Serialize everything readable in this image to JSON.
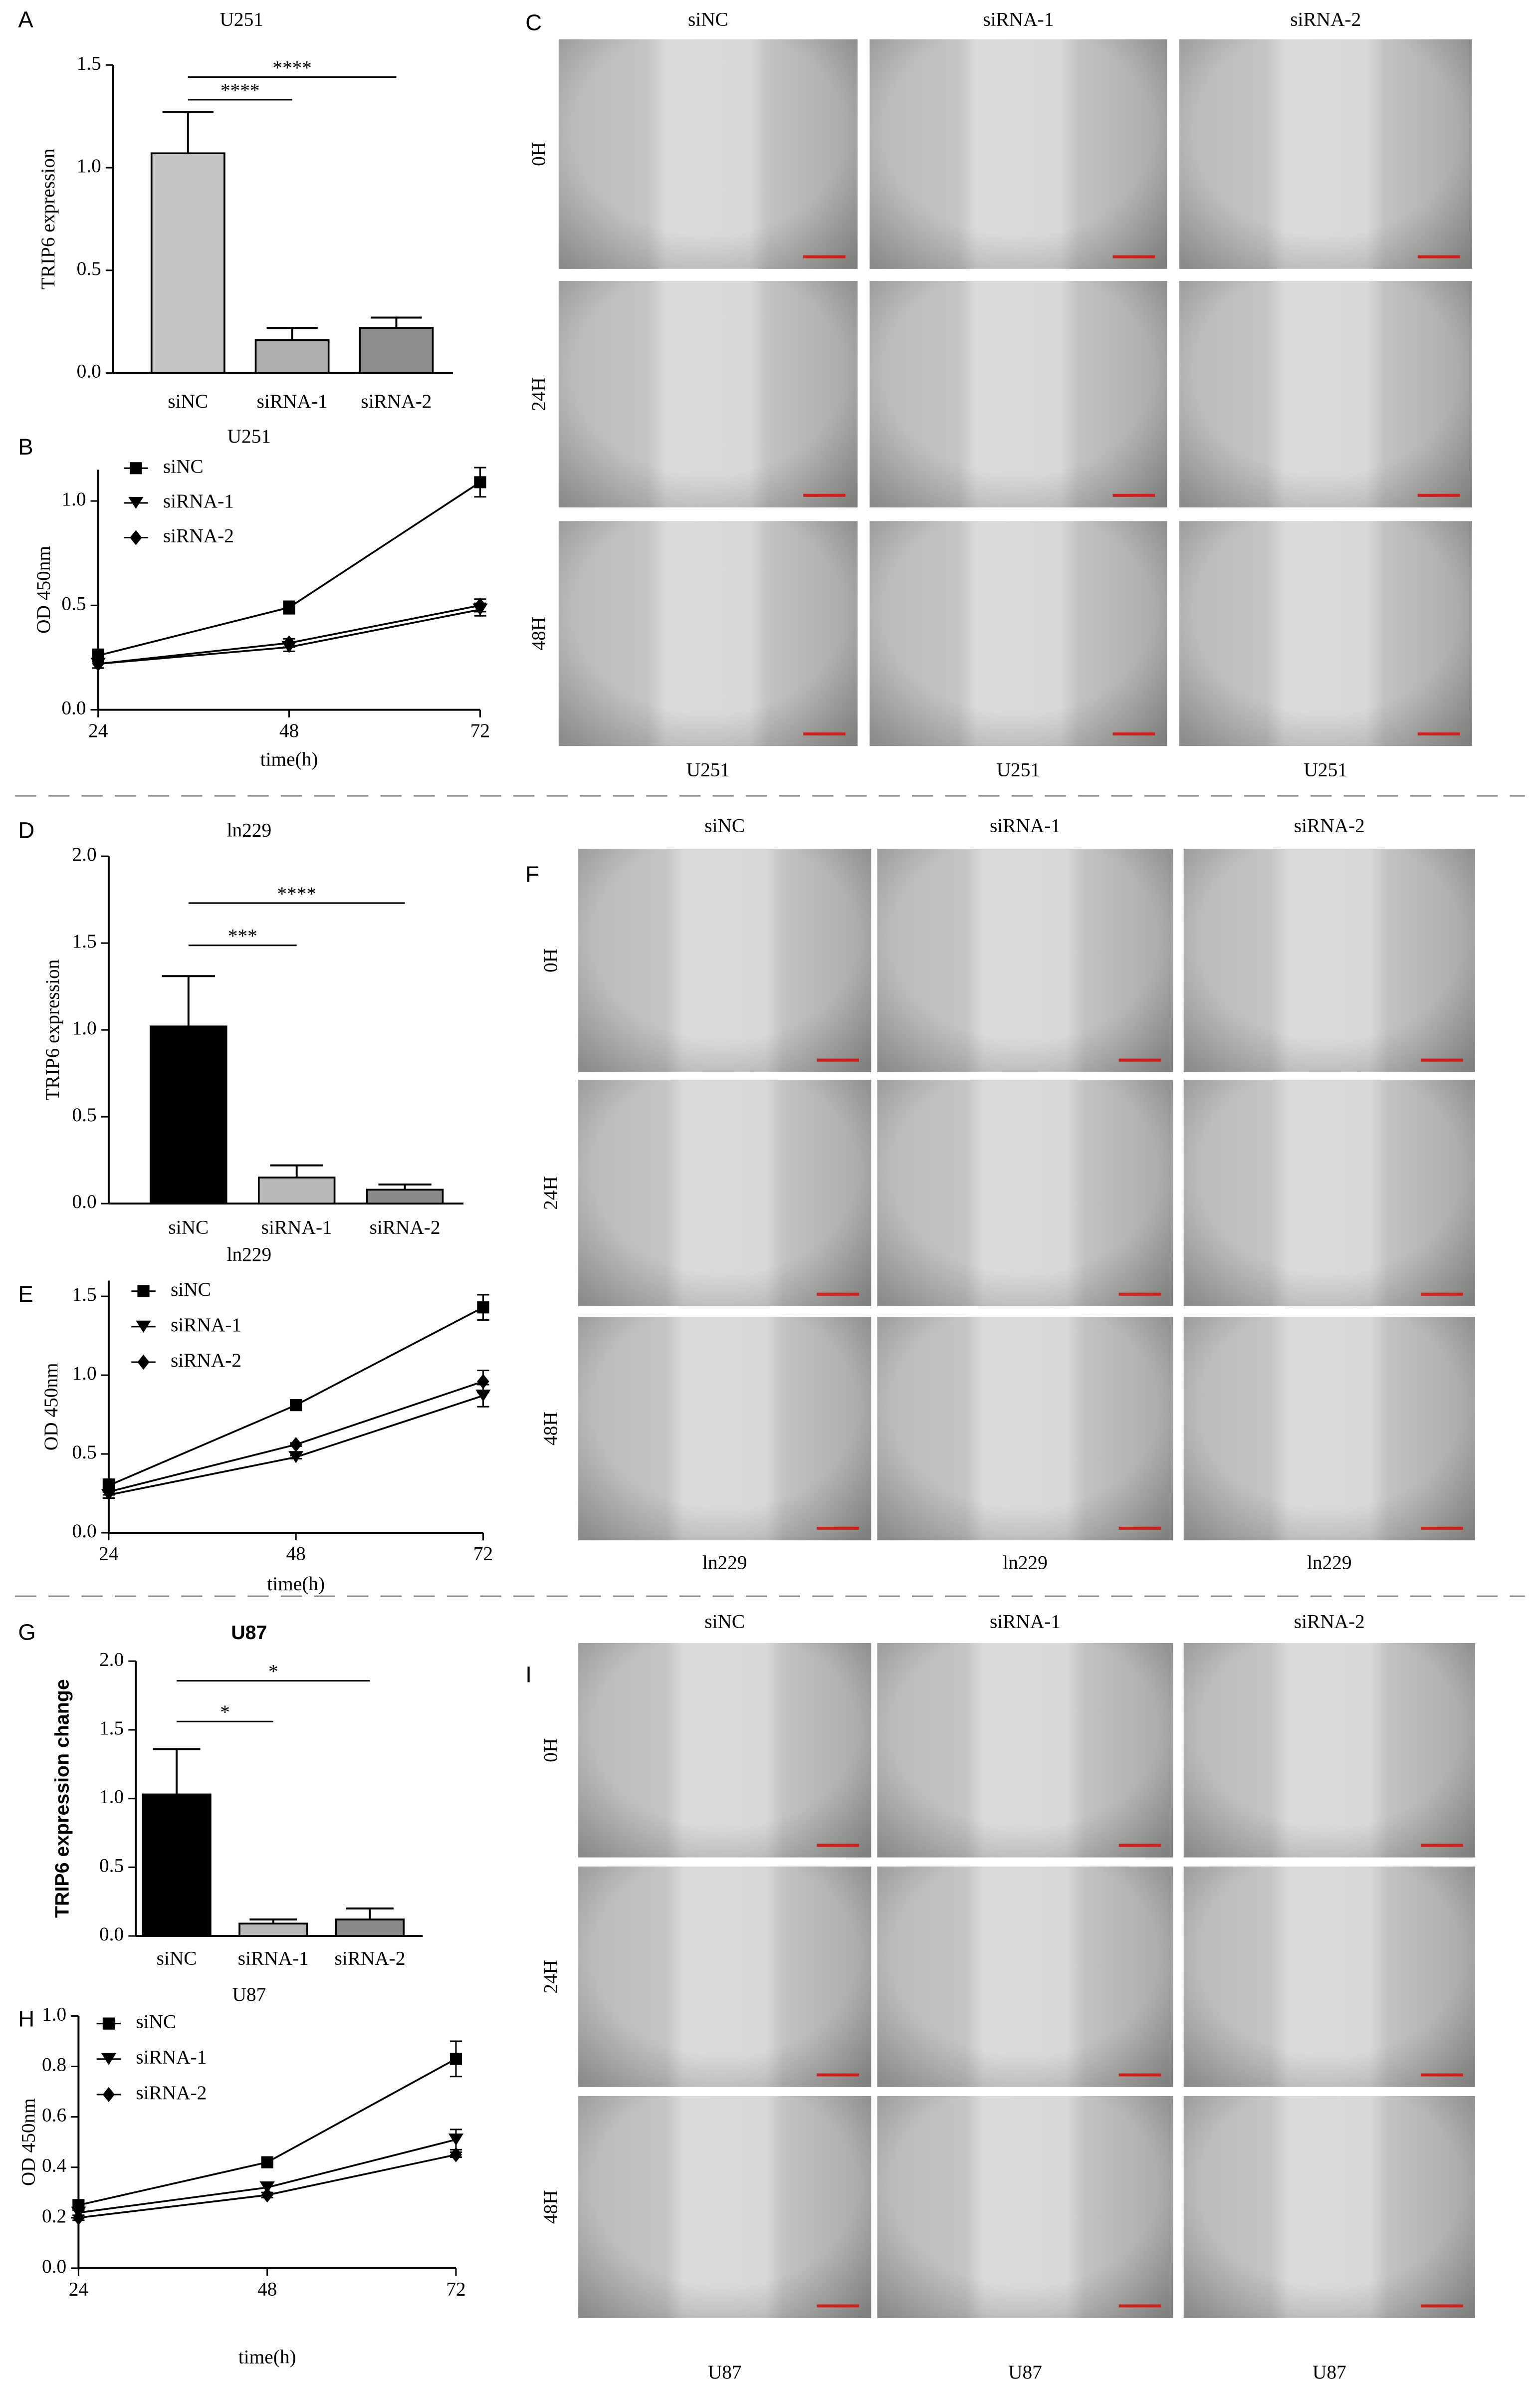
{
  "chart_data": [
    {
      "type": "bar",
      "label": "A",
      "title": "U251",
      "ylabel": "TRIP6 expression",
      "categories": [
        "siNC",
        "siRNA-1",
        "siRNA-2"
      ],
      "values": [
        1.07,
        0.16,
        0.22
      ],
      "errors": [
        0.2,
        0.06,
        0.05
      ],
      "colors": [
        "#c4c4c4",
        "#b0b0b0",
        "#8e8e8e"
      ],
      "ylim": [
        0,
        1.5
      ],
      "yticks": [
        {
          "value": 0,
          "label": "0.0"
        },
        0.5,
        {
          "value": 1,
          "label": "1.0"
        },
        1.5
      ],
      "significance": [
        "****",
        "****"
      ]
    },
    {
      "type": "line",
      "label": "B",
      "title": "U251",
      "ylabel": "OD 450nm",
      "xlabel": "time(h)",
      "x": [
        24,
        48,
        72
      ],
      "series": [
        {
          "name": "siNC",
          "color": "#000000",
          "marker": "square",
          "values": [
            0.26,
            0.49,
            1.09
          ],
          "errors": [
            0.03,
            0.03,
            0.07
          ]
        },
        {
          "name": "siRNA-1",
          "color": "#000000",
          "marker": "triangle-down",
          "values": [
            0.22,
            0.3,
            0.48
          ],
          "errors": [
            0.02,
            0.02,
            0.03
          ]
        },
        {
          "name": "siRNA-2",
          "color": "#000000",
          "marker": "diamond",
          "values": [
            0.22,
            0.32,
            0.5
          ],
          "errors": [
            0.02,
            0.02,
            0.03
          ]
        }
      ],
      "xlim": [
        24,
        72
      ],
      "xticks": [
        24,
        48,
        72
      ],
      "ylim": [
        0,
        1.15
      ],
      "yticks": [
        {
          "value": 0,
          "label": "0.0"
        },
        0.5,
        {
          "value": 1,
          "label": "1.0"
        }
      ]
    },
    {
      "type": "bar",
      "label": "D",
      "title": "ln229",
      "ylabel": "TRIP6 expression",
      "categories": [
        "siNC",
        "siRNA-1",
        "siRNA-2"
      ],
      "values": [
        1.02,
        0.15,
        0.08
      ],
      "errors": [
        0.29,
        0.07,
        0.03
      ],
      "colors": [
        "#000000",
        "#b8b8b8",
        "#8a8a8a"
      ],
      "ylim": [
        0,
        2
      ],
      "yticks": [
        {
          "value": 0,
          "label": "0.0"
        },
        0.5,
        {
          "value": 1,
          "label": "1.0"
        },
        1.5,
        {
          "value": 2,
          "label": "2.0"
        }
      ],
      "significance": [
        "***",
        "****"
      ]
    },
    {
      "type": "line",
      "label": "E",
      "title": "ln229",
      "ylabel": "OD 450nm",
      "xlabel": "time(h)",
      "x": [
        24,
        48,
        72
      ],
      "series": [
        {
          "name": "siNC",
          "color": "#000000",
          "marker": "square",
          "values": [
            0.3,
            0.81,
            1.43
          ],
          "errors": [
            0.04,
            0.02,
            0.08
          ]
        },
        {
          "name": "siRNA-1",
          "color": "#000000",
          "marker": "triangle-down",
          "values": [
            0.24,
            0.48,
            0.87
          ],
          "errors": [
            0.02,
            0.01,
            0.07
          ]
        },
        {
          "name": "siRNA-2",
          "color": "#000000",
          "marker": "diamond",
          "values": [
            0.26,
            0.56,
            0.96
          ],
          "errors": [
            0.02,
            0.01,
            0.07
          ]
        }
      ],
      "xlim": [
        24,
        72
      ],
      "xticks": [
        24,
        48,
        72
      ],
      "ylim": [
        0,
        1.6
      ],
      "yticks": [
        {
          "value": 0,
          "label": "0.0"
        },
        0.5,
        {
          "value": 1,
          "label": "1.0"
        },
        1.5
      ]
    },
    {
      "type": "bar",
      "label": "G",
      "title": "U87",
      "ylabel": "TRIP6 expression change",
      "bold": true,
      "categories": [
        "siNC",
        "siRNA-1",
        "siRNA-2"
      ],
      "values": [
        1.03,
        0.09,
        0.12
      ],
      "errors": [
        0.33,
        0.03,
        0.08
      ],
      "colors": [
        "#000000",
        "#b8b8b8",
        "#8a8a8a"
      ],
      "ylim": [
        0,
        2
      ],
      "yticks": [
        {
          "value": 0,
          "label": "0.0"
        },
        0.5,
        {
          "value": 1,
          "label": "1.0"
        },
        1.5,
        {
          "value": 2,
          "label": "2.0"
        }
      ],
      "significance": [
        "*",
        "*"
      ]
    },
    {
      "type": "line",
      "label": "H",
      "title": "U87",
      "ylabel": "OD 450nm",
      "xlabel": "time(h)",
      "x": [
        24,
        48,
        72
      ],
      "series": [
        {
          "name": "siNC",
          "color": "#000000",
          "marker": "square",
          "values": [
            0.25,
            0.42,
            0.83
          ],
          "errors": [
            0.02,
            0.01,
            0.07
          ]
        },
        {
          "name": "siRNA-1",
          "color": "#000000",
          "marker": "triangle-down",
          "values": [
            0.22,
            0.32,
            0.51
          ],
          "errors": [
            0.02,
            0.02,
            0.04
          ]
        },
        {
          "name": "siRNA-2",
          "color": "#000000",
          "marker": "diamond",
          "values": [
            0.2,
            0.29,
            0.45
          ],
          "errors": [
            0.01,
            0.01,
            0.01
          ]
        }
      ],
      "xlim": [
        24,
        72
      ],
      "xticks": [
        24,
        48,
        72
      ],
      "ylim": [
        0,
        1
      ],
      "yticks": [
        {
          "value": 0,
          "label": "0.0"
        },
        0.2,
        0.4,
        0.6,
        0.8,
        {
          "value": 1,
          "label": "1.0"
        }
      ]
    }
  ],
  "image_panels": [
    {
      "label": "C",
      "columns": [
        "siNC",
        "siRNA-1",
        "siRNA-2"
      ],
      "rows": [
        "0H",
        "24H",
        "48H"
      ],
      "captions": [
        "U251",
        "U251",
        "U251"
      ]
    },
    {
      "label": "F",
      "columns": [
        "siNC",
        "siRNA-1",
        "siRNA-2"
      ],
      "rows": [
        "0H",
        "24H",
        "48H"
      ],
      "captions": [
        "ln229",
        "ln229",
        "ln229"
      ]
    },
    {
      "label": "I",
      "columns": [
        "siNC",
        "siRNA-1",
        "siRNA-2"
      ],
      "rows": [
        "0H",
        "24H",
        "48H"
      ],
      "captions": [
        "U87",
        "U87",
        "U87"
      ]
    }
  ]
}
